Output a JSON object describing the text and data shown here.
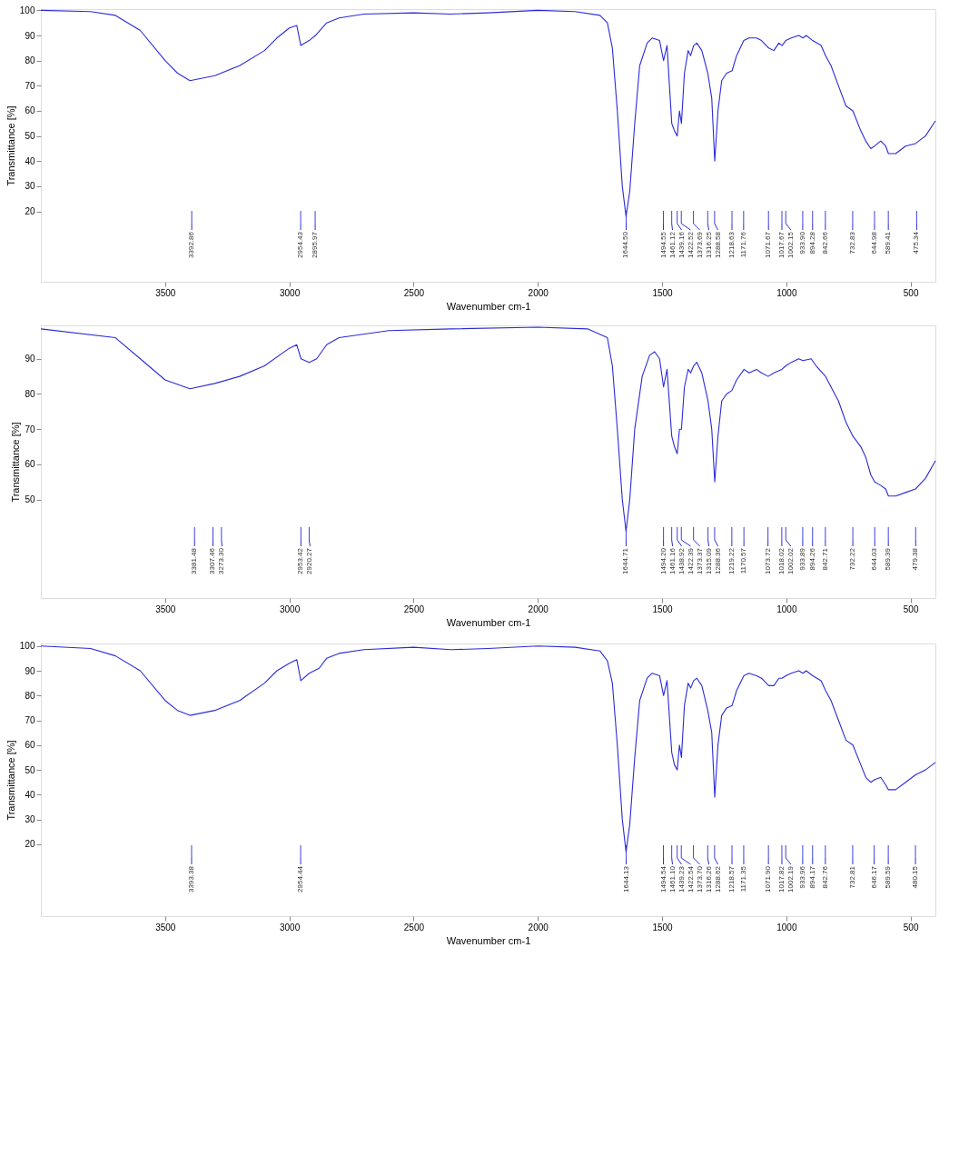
{
  "chart_data": [
    {
      "type": "line",
      "xlabel": "Wavenumber cm-1",
      "ylabel": "Transmittance [%]",
      "grid": false,
      "marker": "none",
      "line_style": "solid",
      "xlim": [
        4000,
        400
      ],
      "ylim": [
        -8,
        100.5
      ],
      "xticks": [
        3500,
        3000,
        2500,
        2000,
        1500,
        1000,
        500
      ],
      "yticks": [
        20,
        30,
        40,
        50,
        60,
        70,
        80,
        90,
        100
      ],
      "x": [
        4000,
        3800,
        3700,
        3600,
        3500,
        3450,
        3400,
        3300,
        3200,
        3100,
        3050,
        3000,
        2970,
        2954,
        2920,
        2895,
        2850,
        2800,
        2700,
        2500,
        2350,
        2200,
        2000,
        1850,
        1750,
        1720,
        1700,
        1680,
        1660,
        1645,
        1630,
        1610,
        1590,
        1560,
        1540,
        1510,
        1494,
        1480,
        1461,
        1450,
        1439,
        1430,
        1422,
        1410,
        1395,
        1385,
        1373,
        1360,
        1340,
        1316,
        1300,
        1288,
        1275,
        1260,
        1240,
        1218,
        1200,
        1171,
        1150,
        1120,
        1100,
        1071,
        1050,
        1030,
        1017,
        1002,
        980,
        950,
        933,
        920,
        894,
        860,
        842,
        820,
        790,
        760,
        732,
        700,
        680,
        660,
        645,
        620,
        600,
        589,
        560,
        520,
        480,
        440,
        400
      ],
      "series": [
        {
          "color": "#2b2bd9",
          "values": [
            100,
            99.5,
            98,
            92,
            80,
            75,
            72,
            74,
            78,
            84,
            89,
            93,
            94,
            86,
            88,
            90,
            95,
            97,
            98.5,
            99,
            98.5,
            99,
            100,
            99.5,
            98,
            95,
            85,
            60,
            30,
            18,
            28,
            55,
            78,
            87,
            89,
            88,
            80,
            86,
            55,
            52,
            50,
            60,
            55,
            75,
            84,
            82,
            86,
            87,
            84,
            75,
            65,
            40,
            60,
            72,
            75,
            76,
            82,
            88,
            89,
            89,
            88,
            85,
            84,
            87,
            86,
            88,
            89,
            90,
            89,
            90,
            88,
            86,
            82,
            78,
            70,
            62,
            60,
            52,
            48,
            45,
            46,
            48,
            46,
            43,
            43,
            46,
            47,
            50,
            56
          ]
        }
      ],
      "ref_lines": [
        {
          "axis": "x",
          "value": 3392.86,
          "label": "3392.86"
        },
        {
          "axis": "x",
          "value": 2954.43,
          "label": "2954.43"
        },
        {
          "axis": "x",
          "value": 2895.97,
          "label": "2895.97"
        },
        {
          "axis": "x",
          "value": 1644.5,
          "label": "1644.50"
        },
        {
          "axis": "x",
          "value": 1494.55,
          "label": "1494.55"
        },
        {
          "axis": "x",
          "value": 1461.12,
          "label": "1461.12"
        },
        {
          "axis": "x",
          "value": 1439.16,
          "label": "1439.16"
        },
        {
          "axis": "x",
          "value": 1422.52,
          "label": "1422.52"
        },
        {
          "axis": "x",
          "value": 1373.69,
          "label": "1373.69"
        },
        {
          "axis": "x",
          "value": 1316.25,
          "label": "1316.25"
        },
        {
          "axis": "x",
          "value": 1288.58,
          "label": "1288.58"
        },
        {
          "axis": "x",
          "value": 1218.63,
          "label": "1218.63"
        },
        {
          "axis": "x",
          "value": 1171.76,
          "label": "1171.76"
        },
        {
          "axis": "x",
          "value": 1071.67,
          "label": "1071.67"
        },
        {
          "axis": "x",
          "value": 1017.67,
          "label": "1017.67"
        },
        {
          "axis": "x",
          "value": 1002.15,
          "label": "1002.15"
        },
        {
          "axis": "x",
          "value": 933.9,
          "label": "933.90"
        },
        {
          "axis": "x",
          "value": 894.28,
          "label": "894.28"
        },
        {
          "axis": "x",
          "value": 842.66,
          "label": "842.66"
        },
        {
          "axis": "x",
          "value": 732.83,
          "label": "732.83"
        },
        {
          "axis": "x",
          "value": 644.98,
          "label": "644.98"
        },
        {
          "axis": "x",
          "value": 589.41,
          "label": "589.41"
        },
        {
          "axis": "x",
          "value": 475.34,
          "label": "475.34"
        }
      ]
    },
    {
      "type": "line",
      "xlabel": "Wavenumber cm-1",
      "ylabel": "Transmittance [%]",
      "grid": false,
      "marker": "none",
      "line_style": "solid",
      "xlim": [
        4000,
        400
      ],
      "ylim": [
        22,
        99.5
      ],
      "xticks": [
        3500,
        3000,
        2500,
        2000,
        1500,
        1000,
        500
      ],
      "yticks": [
        50,
        60,
        70,
        80,
        90
      ],
      "x": [
        4000,
        3700,
        3600,
        3500,
        3400,
        3300,
        3200,
        3100,
        3000,
        2970,
        2953,
        2920,
        2890,
        2850,
        2800,
        2600,
        2350,
        2000,
        1800,
        1720,
        1700,
        1680,
        1660,
        1645,
        1630,
        1610,
        1580,
        1550,
        1530,
        1510,
        1494,
        1480,
        1461,
        1450,
        1439,
        1430,
        1422,
        1410,
        1395,
        1385,
        1373,
        1360,
        1340,
        1315,
        1300,
        1288,
        1275,
        1260,
        1240,
        1219,
        1200,
        1170,
        1150,
        1120,
        1100,
        1073,
        1050,
        1018,
        1002,
        980,
        950,
        933,
        900,
        880,
        842,
        820,
        790,
        760,
        732,
        700,
        680,
        660,
        644,
        620,
        600,
        589,
        560,
        520,
        480,
        440,
        400
      ],
      "series": [
        {
          "color": "#2b2bd9",
          "values": [
            98.5,
            96,
            90,
            84,
            81.5,
            83,
            85,
            88,
            93,
            94,
            90,
            89,
            90,
            94,
            96,
            98,
            98.5,
            99,
            98.5,
            96,
            88,
            70,
            50,
            41,
            50,
            70,
            85,
            91,
            92,
            90,
            82,
            87,
            68,
            65,
            63,
            70,
            70,
            82,
            87,
            86,
            88,
            89,
            86,
            78,
            70,
            55,
            68,
            78,
            80,
            81,
            84,
            87,
            86,
            87,
            86,
            85,
            86,
            87,
            88,
            89,
            90,
            89.5,
            90,
            88,
            85,
            82,
            78,
            72,
            68,
            65,
            62,
            57,
            55,
            54,
            53,
            51,
            51,
            52,
            53,
            56,
            61
          ]
        }
      ],
      "ref_lines": [
        {
          "axis": "x",
          "value": 3381.48,
          "label": "3381.48"
        },
        {
          "axis": "x",
          "value": 3307.46,
          "label": "3307.46"
        },
        {
          "axis": "x",
          "value": 3273.3,
          "label": "3273.30"
        },
        {
          "axis": "x",
          "value": 2953.42,
          "label": "2953.42"
        },
        {
          "axis": "x",
          "value": 2920.27,
          "label": "2920.27"
        },
        {
          "axis": "x",
          "value": 1644.71,
          "label": "1644.71"
        },
        {
          "axis": "x",
          "value": 1494.2,
          "label": "1494.20"
        },
        {
          "axis": "x",
          "value": 1461.16,
          "label": "1461.16"
        },
        {
          "axis": "x",
          "value": 1438.92,
          "label": "1438.92"
        },
        {
          "axis": "x",
          "value": 1422.39,
          "label": "1422.39"
        },
        {
          "axis": "x",
          "value": 1373.37,
          "label": "1373.37"
        },
        {
          "axis": "x",
          "value": 1315.09,
          "label": "1315.09"
        },
        {
          "axis": "x",
          "value": 1288.36,
          "label": "1288.36"
        },
        {
          "axis": "x",
          "value": 1219.22,
          "label": "1219.22"
        },
        {
          "axis": "x",
          "value": 1170.57,
          "label": "1170.57"
        },
        {
          "axis": "x",
          "value": 1073.72,
          "label": "1073.72"
        },
        {
          "axis": "x",
          "value": 1018.02,
          "label": "1018.02"
        },
        {
          "axis": "x",
          "value": 1002.02,
          "label": "1002.02"
        },
        {
          "axis": "x",
          "value": 933.89,
          "label": "933.89"
        },
        {
          "axis": "x",
          "value": 894.26,
          "label": "894.26"
        },
        {
          "axis": "x",
          "value": 842.71,
          "label": "842.71"
        },
        {
          "axis": "x",
          "value": 732.22,
          "label": "732.22"
        },
        {
          "axis": "x",
          "value": 644.03,
          "label": "644.03"
        },
        {
          "axis": "x",
          "value": 589.39,
          "label": "589.39"
        },
        {
          "axis": "x",
          "value": 479.38,
          "label": "479.38"
        }
      ]
    },
    {
      "type": "line",
      "xlabel": "Wavenumber cm-1",
      "ylabel": "Transmittance [%]",
      "grid": false,
      "marker": "none",
      "line_style": "solid",
      "xlim": [
        4000,
        400
      ],
      "ylim": [
        -9,
        101
      ],
      "xticks": [
        3500,
        3000,
        2500,
        2000,
        1500,
        1000,
        500
      ],
      "yticks": [
        20,
        30,
        40,
        50,
        60,
        70,
        80,
        90,
        100
      ],
      "x": [
        4000,
        3800,
        3700,
        3600,
        3500,
        3450,
        3400,
        3300,
        3200,
        3100,
        3050,
        3000,
        2970,
        2954,
        2920,
        2880,
        2850,
        2800,
        2700,
        2500,
        2350,
        2200,
        2000,
        1850,
        1750,
        1720,
        1700,
        1680,
        1660,
        1645,
        1630,
        1610,
        1590,
        1560,
        1540,
        1510,
        1494,
        1480,
        1461,
        1450,
        1439,
        1430,
        1422,
        1410,
        1395,
        1385,
        1373,
        1360,
        1340,
        1316,
        1300,
        1288,
        1275,
        1260,
        1240,
        1218,
        1200,
        1171,
        1150,
        1120,
        1100,
        1071,
        1050,
        1030,
        1017,
        1002,
        980,
        950,
        933,
        920,
        894,
        860,
        842,
        820,
        790,
        760,
        732,
        700,
        680,
        660,
        646,
        620,
        600,
        589,
        560,
        520,
        480,
        440,
        400
      ],
      "series": [
        {
          "color": "#2b2bd9",
          "values": [
            100,
            99,
            96,
            90,
            78,
            74,
            72,
            74,
            78,
            85,
            90,
            93,
            94.5,
            86,
            89,
            91,
            95,
            97,
            98.5,
            99.5,
            98.5,
            99,
            100,
            99.5,
            98,
            94,
            85,
            60,
            30,
            17,
            28,
            55,
            78,
            87,
            89,
            88,
            80,
            86,
            57,
            52,
            50,
            60,
            55,
            76,
            85,
            83,
            86,
            87,
            84,
            74,
            65,
            39,
            60,
            72,
            75,
            76,
            82,
            88,
            89,
            88,
            87,
            84,
            84,
            87,
            87,
            88,
            89,
            90,
            89,
            90,
            88,
            86,
            82,
            78,
            70,
            62,
            60,
            52,
            47,
            45,
            46,
            47,
            44,
            42,
            42,
            45,
            48,
            50,
            53
          ]
        }
      ],
      "ref_lines": [
        {
          "axis": "x",
          "value": 3393.38,
          "label": "3393.38"
        },
        {
          "axis": "x",
          "value": 2954.44,
          "label": "2954.44"
        },
        {
          "axis": "x",
          "value": 1644.13,
          "label": "1644.13"
        },
        {
          "axis": "x",
          "value": 1494.54,
          "label": "1494.54"
        },
        {
          "axis": "x",
          "value": 1461.1,
          "label": "1461.10"
        },
        {
          "axis": "x",
          "value": 1439.23,
          "label": "1439.23"
        },
        {
          "axis": "x",
          "value": 1422.54,
          "label": "1422.54"
        },
        {
          "axis": "x",
          "value": 1373.7,
          "label": "1373.70"
        },
        {
          "axis": "x",
          "value": 1316.26,
          "label": "1316.26"
        },
        {
          "axis": "x",
          "value": 1288.62,
          "label": "1288.62"
        },
        {
          "axis": "x",
          "value": 1218.57,
          "label": "1218.57"
        },
        {
          "axis": "x",
          "value": 1171.35,
          "label": "1171.35"
        },
        {
          "axis": "x",
          "value": 1071.9,
          "label": "1071.90"
        },
        {
          "axis": "x",
          "value": 1017.82,
          "label": "1017.82"
        },
        {
          "axis": "x",
          "value": 1002.19,
          "label": "1002.19"
        },
        {
          "axis": "x",
          "value": 933.96,
          "label": "933.96"
        },
        {
          "axis": "x",
          "value": 894.17,
          "label": "894.17"
        },
        {
          "axis": "x",
          "value": 842.76,
          "label": "842.76"
        },
        {
          "axis": "x",
          "value": 732.81,
          "label": "732.81"
        },
        {
          "axis": "x",
          "value": 646.17,
          "label": "646.17"
        },
        {
          "axis": "x",
          "value": 589.59,
          "label": "589.59"
        },
        {
          "axis": "x",
          "value": 480.15,
          "label": "480.15"
        }
      ]
    }
  ]
}
